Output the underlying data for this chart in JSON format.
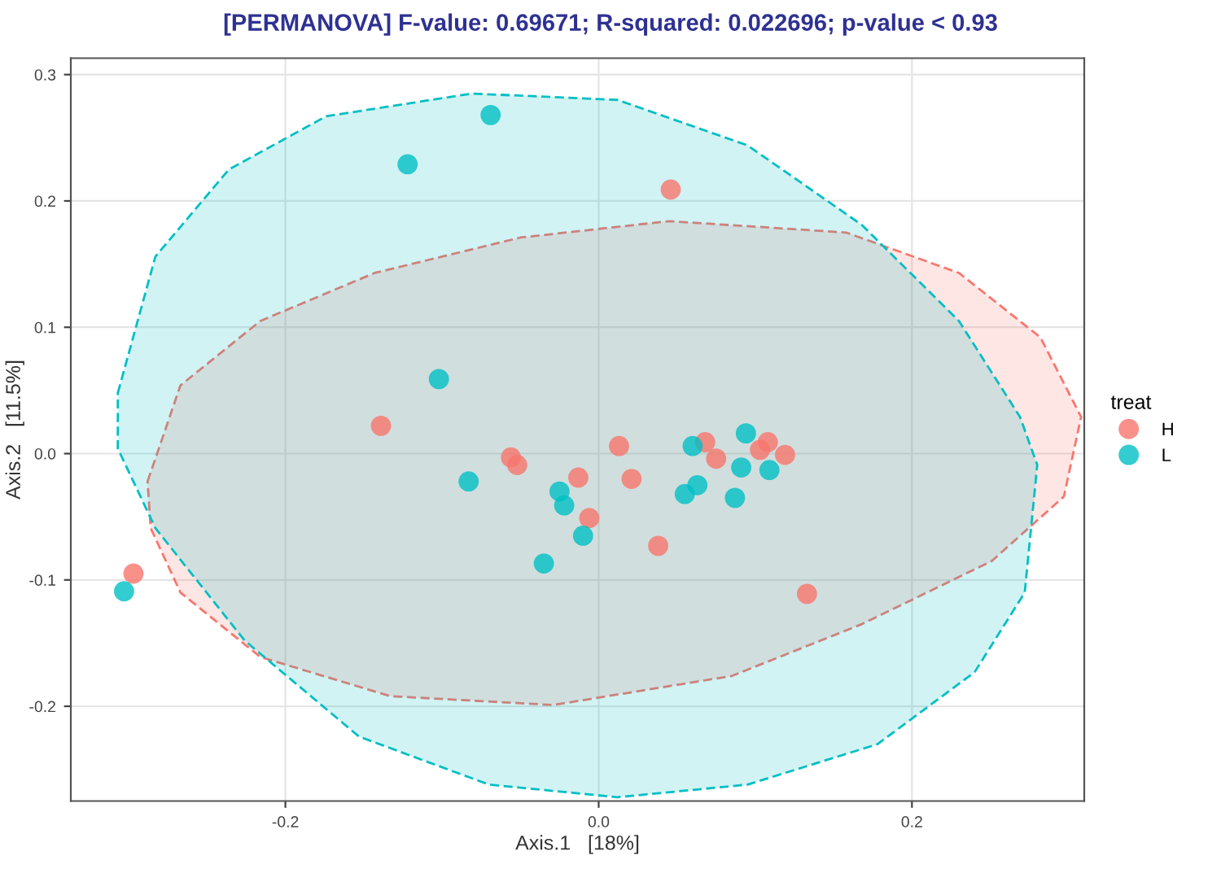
{
  "chart_data": {
    "type": "scatter",
    "title": "[PERMANOVA] F-value: 0.69671; R-squared: 0.022696; p-value < 0.93",
    "xlabel": "Axis.1   [18%]",
    "ylabel": "Axis.2   [11.5%]",
    "legend_title": "treat",
    "legend": "right",
    "grid": true,
    "marker": "circle",
    "xlim": [
      -0.337,
      0.31
    ],
    "ylim": [
      -0.275,
      0.313
    ],
    "xticks": [
      -0.2,
      {
        "value": 0,
        "label": "0.0"
      },
      0.2
    ],
    "yticks": [
      -0.2,
      -0.1,
      {
        "value": 0,
        "label": "0.0"
      },
      0.1,
      0.2,
      0.3
    ],
    "series": [
      {
        "type": "area",
        "color": "#f8766d",
        "line_style": "dashed",
        "marker": "none",
        "x": [
          -0.288,
          -0.267,
          -0.216,
          -0.143,
          -0.05,
          0.045,
          0.158,
          0.23,
          0.282,
          0.308,
          0.297,
          0.251,
          0.168,
          0.085,
          -0.029,
          -0.133,
          -0.216,
          -0.267,
          -0.286
        ],
        "values": [
          -0.022,
          0.054,
          0.105,
          0.143,
          0.171,
          0.184,
          0.175,
          0.143,
          0.092,
          0.029,
          -0.034,
          -0.085,
          -0.135,
          -0.176,
          -0.199,
          -0.192,
          -0.161,
          -0.11,
          -0.059
        ]
      },
      {
        "type": "area",
        "color": "#00bfc4",
        "line_style": "dashed",
        "marker": "none",
        "x": [
          -0.307,
          -0.283,
          -0.236,
          -0.174,
          -0.081,
          0.012,
          0.095,
          0.168,
          0.23,
          0.269,
          0.28,
          0.272,
          0.24,
          0.178,
          0.095,
          0.012,
          -0.07,
          -0.153,
          -0.226,
          -0.283,
          -0.307
        ],
        "values": [
          0.048,
          0.156,
          0.225,
          0.267,
          0.285,
          0.28,
          0.244,
          0.181,
          0.105,
          0.029,
          -0.009,
          -0.11,
          -0.173,
          -0.23,
          -0.262,
          -0.272,
          -0.262,
          -0.224,
          -0.148,
          -0.059,
          0.004
        ]
      },
      {
        "name": "H",
        "color": "#f8766d",
        "x": [
          -0.297,
          -0.139,
          -0.056,
          -0.052,
          -0.013,
          0.013,
          0.021,
          -0.006,
          0.038,
          0.046,
          0.068,
          0.075,
          0.103,
          0.108,
          0.119,
          0.133
        ],
        "values": [
          -0.095,
          0.022,
          -0.003,
          -0.009,
          -0.019,
          0.006,
          -0.02,
          -0.051,
          -0.073,
          0.209,
          0.009,
          -0.004,
          0.003,
          0.009,
          -0.001,
          -0.111
        ]
      },
      {
        "name": "L",
        "color": "#00bfc4",
        "x": [
          -0.303,
          -0.122,
          -0.069,
          -0.102,
          -0.083,
          -0.025,
          -0.022,
          -0.01,
          -0.035,
          0.06,
          0.055,
          0.063,
          0.094,
          0.091,
          0.087,
          0.109
        ],
        "values": [
          -0.109,
          0.229,
          0.268,
          0.059,
          -0.022,
          -0.03,
          -0.041,
          -0.065,
          -0.087,
          0.006,
          -0.032,
          -0.025,
          0.016,
          -0.011,
          -0.035,
          -0.013
        ]
      }
    ]
  }
}
